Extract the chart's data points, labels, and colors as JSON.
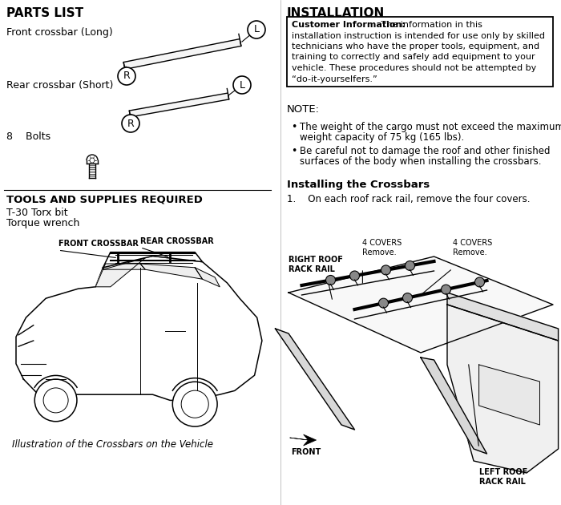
{
  "bg_color": "#ffffff",
  "parts_list_title": "PARTS LIST",
  "front_crossbar_label": "Front crossbar (Long)",
  "rear_crossbar_label": "Rear crossbar (Short)",
  "bolts_label": "8    Bolts",
  "tools_title": "TOOLS AND SUPPLIES REQUIRED",
  "tools": [
    "T-30 Torx bit",
    "Torque wrench"
  ],
  "car_caption": "Illustration of the Crossbars on the Vehicle",
  "install_title": "INSTALLATION",
  "customer_info_bold": "Customer Information:",
  "customer_info_rest": " The information in this installation instruction is intended for use only by skilled technicians who have the proper tools, equipment, and training to correctly and safely add equipment to your vehicle. These procedures should not be attempted by “do-it-yourselfers.”",
  "note_title": "NOTE:",
  "bullet1_line1": "The weight of the cargo must not exceed the maximum",
  "bullet1_line2": "weight capacity of 75 kg (165 lbs).",
  "bullet2_line1": "Be careful not to damage the roof and other finished",
  "bullet2_line2": "surfaces of the body when installing the crossbars.",
  "install_crossbars_title": "Installing the Crossbars",
  "step1": "1.    On each roof rack rail, remove the four covers.",
  "label_front_crossbar": "FRONT CROSSBAR",
  "label_rear_crossbar": "REAR CROSSBAR",
  "label_right_roof": "RIGHT ROOF\nRACK RAIL",
  "label_4covers_1": "4 COVERS\nRemove.",
  "label_4covers_2": "4 COVERS\nRemove.",
  "label_front": "FRONT",
  "label_left_roof": "LEFT ROOF\nRACK RAIL"
}
